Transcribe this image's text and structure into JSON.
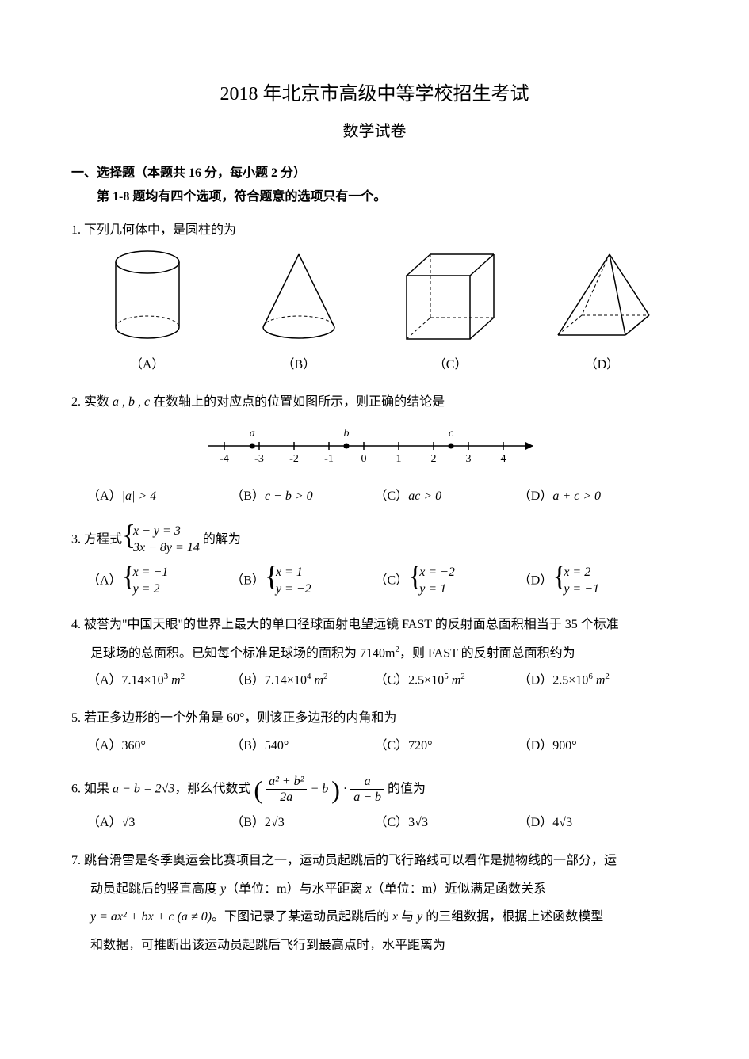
{
  "title": "2018 年北京市高级中等学校招生考试",
  "subtitle": "数学试卷",
  "section": {
    "head": "一、选择题（本题共 16 分，每小题 2 分）",
    "sub": "第 1-8 题均有四个选项，符合题意的选项只有一个。"
  },
  "q1": {
    "num": "1.",
    "stem": "下列几何体中，是圆柱的为",
    "labels": {
      "a": "（A）",
      "b": "（B）",
      "c": "（C）",
      "d": "（D）"
    }
  },
  "q2": {
    "num": "2.",
    "stem_pre": "实数 ",
    "vars": "a , b , c",
    "stem_post": " 在数轴上的对应点的位置如图所示，则正确的结论是",
    "numberline": {
      "ticks": [
        -4,
        -3,
        -2,
        -1,
        0,
        1,
        2,
        3,
        4
      ],
      "points": [
        {
          "label": "a",
          "pos": -3.2
        },
        {
          "label": "b",
          "pos": -0.5
        },
        {
          "label": "c",
          "pos": 2.5
        }
      ]
    },
    "opts": {
      "a_pre": "（A）",
      "a_math": "|a| > 4",
      "b_pre": "（B）",
      "b_math": "c − b > 0",
      "c_pre": "（C）",
      "c_math": "ac > 0",
      "d_pre": "（D）",
      "d_math": "a + c > 0"
    }
  },
  "q3": {
    "num": "3.",
    "stem_pre": "方程式 ",
    "eq1": "x − y = 3",
    "eq2": "3x − 8y = 14",
    "stem_post": " 的解为",
    "opts": {
      "a": "（A）",
      "a1": "x = −1",
      "a2": "y = 2",
      "b": "（B）",
      "b1": "x = 1",
      "b2": "y = −2",
      "c": "（C）",
      "c1": "x = −2",
      "c2": "y = 1",
      "d": "（D）",
      "d1": "x = 2",
      "d2": "y = −1"
    }
  },
  "q4": {
    "num": "4.",
    "line1": "被誉为\"中国天眼\"的世界上最大的单口径球面射电望远镜 FAST 的反射面总面积相当于 35 个标准",
    "line2_pre": "足球场的总面积。已知每个标准足球场的面积为 7140m",
    "line2_post": "，则 FAST 的反射面总面积约为",
    "opts": {
      "a_pre": "（A）7.14×10",
      "a_exp": "3",
      "a_unit": " m",
      "b_pre": "（B）7.14×10",
      "b_exp": "4",
      "b_unit": " m",
      "c_pre": "（C）2.5×10",
      "c_exp": "5",
      "c_unit": " m",
      "d_pre": "（D）2.5×10",
      "d_exp": "6",
      "d_unit": " m"
    }
  },
  "q5": {
    "num": "5.",
    "stem": "若正多边形的一个外角是 60°，则该正多边形的内角和为",
    "opts": {
      "a": "（A）360°",
      "b": "（B）540°",
      "c": "（C）720°",
      "d": "（D）900°"
    }
  },
  "q6": {
    "num": "6.",
    "stem_pre": "如果 ",
    "cond": "a − b = 2√3",
    "stem_mid": "，那么代数式 ",
    "frac1_num": "a² + b²",
    "frac1_den": "2a",
    "minus_b": " − b",
    "dot": " · ",
    "frac2_num": "a",
    "frac2_den": "a − b",
    "stem_post": " 的值为",
    "opts": {
      "a": "（A）√3",
      "b": "（B）2√3",
      "c": "（C）3√3",
      "d": "（D）4√3"
    }
  },
  "q7": {
    "num": "7.",
    "line1": "跳台滑雪是冬季奥运会比赛项目之一，运动员起跳后的飞行路线可以看作是抛物线的一部分，运",
    "line2_pre": "动员起跳后的竖直高度 ",
    "var_y": "y",
    "line2_mid": "（单位：m）与水平距离 ",
    "var_x": "x",
    "line2_post": "（单位：m）近似满足函数关系",
    "line3_eq": "y = ax² + bx + c (a ≠ 0)",
    "line3_post": "。下图记录了某运动员起跳后的 ",
    "var_x2": "x",
    "line3_mid": " 与 ",
    "var_y2": "y",
    "line3_end": " 的三组数据，根据上述函数模型",
    "line4": "和数据，可推断出该运动员起跳后飞行到最高点时，水平距离为"
  }
}
